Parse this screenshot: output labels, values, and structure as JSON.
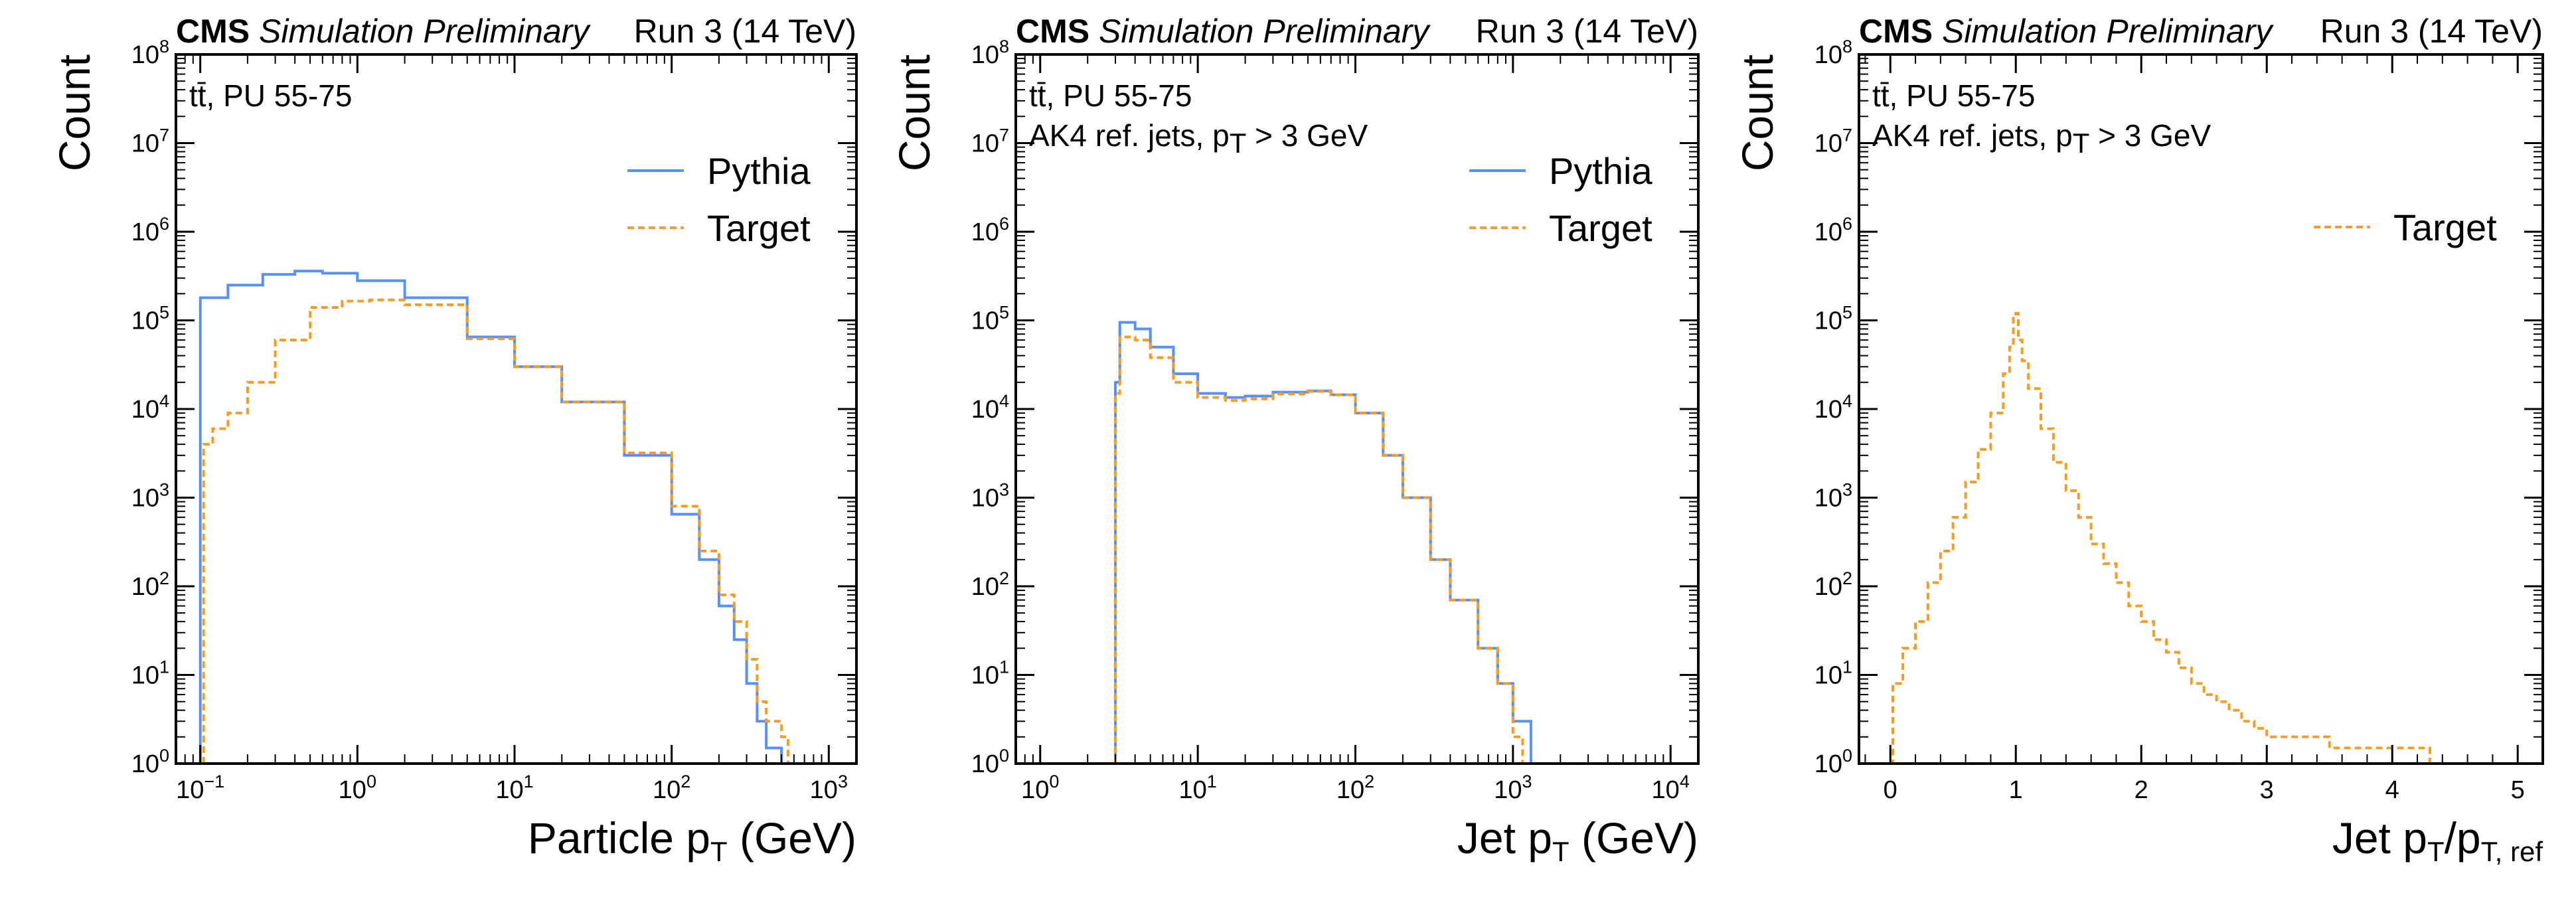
{
  "figure": {
    "header": {
      "experiment": "CMS",
      "status": "Simulation Preliminary",
      "energy": "Run 3 (14 TeV)"
    },
    "legend_labels": {
      "pythia": "Pythia",
      "target": "Target"
    }
  },
  "colors": {
    "pythia": "#5790fc",
    "target": "#f89c20",
    "axis": "#000000"
  },
  "chart_data": [
    {
      "type": "histogram-step",
      "title": "",
      "xscale": "log",
      "yscale": "log",
      "xlim": [
        0.07,
        1500
      ],
      "ylim": [
        1,
        100000000
      ],
      "xlabel": {
        "main": "Particle p",
        "sub": "T",
        "tail": " (GeV)"
      },
      "ylabel": "Count",
      "annotations": [
        "tt̄, PU 55-75"
      ],
      "x_ticks": [
        {
          "b": "10",
          "e": "−1",
          "v": 0.1
        },
        {
          "b": "10",
          "e": "0",
          "v": 1
        },
        {
          "b": "10",
          "e": "1",
          "v": 10
        },
        {
          "b": "10",
          "e": "2",
          "v": 100
        },
        {
          "b": "10",
          "e": "3",
          "v": 1000
        }
      ],
      "y_ticks": [
        {
          "b": "10",
          "e": "0",
          "v": 1
        },
        {
          "b": "10",
          "e": "1",
          "v": 10
        },
        {
          "b": "10",
          "e": "2",
          "v": 100
        },
        {
          "b": "10",
          "e": "3",
          "v": 1000
        },
        {
          "b": "10",
          "e": "4",
          "v": 10000
        },
        {
          "b": "10",
          "e": "5",
          "v": 100000
        },
        {
          "b": "10",
          "e": "6",
          "v": 1000000
        },
        {
          "b": "10",
          "e": "7",
          "v": 10000000
        },
        {
          "b": "10",
          "e": "8",
          "v": 100000000
        }
      ],
      "legend": {
        "entries": [
          "Pythia",
          "Target"
        ],
        "location": "top-right"
      },
      "series": [
        {
          "name": "Pythia",
          "style": "solid",
          "points": [
            [
              0.1,
              180000
            ],
            [
              0.15,
              250000
            ],
            [
              0.25,
              330000
            ],
            [
              0.4,
              360000
            ],
            [
              0.6,
              340000
            ],
            [
              1,
              280000
            ],
            [
              2,
              180000
            ],
            [
              5,
              65000
            ],
            [
              10,
              30000
            ],
            [
              20,
              12000
            ],
            [
              50,
              3000
            ],
            [
              100,
              650
            ],
            [
              150,
              200
            ],
            [
              200,
              60
            ],
            [
              250,
              25
            ],
            [
              300,
              8
            ],
            [
              350,
              3
            ],
            [
              400,
              1.5
            ],
            [
              500,
              1
            ]
          ]
        },
        {
          "name": "Target",
          "style": "dashed",
          "points": [
            [
              0.105,
              4000
            ],
            [
              0.12,
              6000
            ],
            [
              0.15,
              9000
            ],
            [
              0.2,
              20000
            ],
            [
              0.3,
              60000
            ],
            [
              0.5,
              140000
            ],
            [
              0.8,
              165000
            ],
            [
              1.2,
              170000
            ],
            [
              2,
              150000
            ],
            [
              5,
              62000
            ],
            [
              10,
              30000
            ],
            [
              20,
              12000
            ],
            [
              50,
              3200
            ],
            [
              100,
              800
            ],
            [
              150,
              250
            ],
            [
              200,
              80
            ],
            [
              250,
              40
            ],
            [
              300,
              15
            ],
            [
              350,
              5
            ],
            [
              400,
              3
            ],
            [
              500,
              2
            ],
            [
              550,
              1
            ]
          ]
        }
      ]
    },
    {
      "type": "histogram-step",
      "title": "",
      "xscale": "log",
      "yscale": "log",
      "xlim": [
        0.7,
        15000
      ],
      "ylim": [
        1,
        100000000
      ],
      "xlabel": {
        "main": "Jet p",
        "sub": "T",
        "tail": " (GeV)"
      },
      "ylabel": "Count",
      "annotations": [
        "tt̄, PU 55-75",
        "AK4 ref. jets, p"
      ],
      "annotation_sub": {
        "sub": "T",
        "tail": " > 3 GeV"
      },
      "x_ticks": [
        {
          "b": "10",
          "e": "0",
          "v": 1
        },
        {
          "b": "10",
          "e": "1",
          "v": 10
        },
        {
          "b": "10",
          "e": "2",
          "v": 100
        },
        {
          "b": "10",
          "e": "3",
          "v": 1000
        },
        {
          "b": "10",
          "e": "4",
          "v": 10000
        }
      ],
      "y_ticks": [
        {
          "b": "10",
          "e": "0",
          "v": 1
        },
        {
          "b": "10",
          "e": "1",
          "v": 10
        },
        {
          "b": "10",
          "e": "2",
          "v": 100
        },
        {
          "b": "10",
          "e": "3",
          "v": 1000
        },
        {
          "b": "10",
          "e": "4",
          "v": 10000
        },
        {
          "b": "10",
          "e": "5",
          "v": 100000
        },
        {
          "b": "10",
          "e": "6",
          "v": 1000000
        },
        {
          "b": "10",
          "e": "7",
          "v": 10000000
        },
        {
          "b": "10",
          "e": "8",
          "v": 100000000
        }
      ],
      "legend": {
        "entries": [
          "Pythia",
          "Target"
        ],
        "location": "top-right"
      },
      "series": [
        {
          "name": "Pythia",
          "style": "solid",
          "points": [
            [
              3,
              20000
            ],
            [
              3.2,
              95000
            ],
            [
              4,
              80000
            ],
            [
              5,
              50000
            ],
            [
              7,
              25000
            ],
            [
              10,
              15000
            ],
            [
              15,
              13500
            ],
            [
              20,
              14000
            ],
            [
              30,
              15500
            ],
            [
              50,
              16000
            ],
            [
              70,
              14500
            ],
            [
              100,
              9000
            ],
            [
              150,
              3000
            ],
            [
              200,
              1000
            ],
            [
              300,
              200
            ],
            [
              400,
              70
            ],
            [
              600,
              20
            ],
            [
              800,
              8
            ],
            [
              1000,
              3
            ],
            [
              1300,
              1
            ]
          ]
        },
        {
          "name": "Target",
          "style": "dashed",
          "points": [
            [
              3,
              15000
            ],
            [
              3.2,
              65000
            ],
            [
              4,
              60000
            ],
            [
              5,
              38000
            ],
            [
              7,
              20000
            ],
            [
              10,
              13500
            ],
            [
              15,
              12500
            ],
            [
              20,
              13000
            ],
            [
              30,
              14800
            ],
            [
              50,
              15800
            ],
            [
              70,
              14500
            ],
            [
              100,
              9000
            ],
            [
              150,
              3000
            ],
            [
              200,
              1000
            ],
            [
              300,
              200
            ],
            [
              400,
              70
            ],
            [
              600,
              20
            ],
            [
              800,
              8
            ],
            [
              1000,
              2
            ],
            [
              1150,
              1
            ]
          ]
        }
      ]
    },
    {
      "type": "histogram-step",
      "title": "",
      "xscale": "linear",
      "yscale": "log",
      "xlim": [
        -0.25,
        5.2
      ],
      "ylim": [
        1,
        100000000
      ],
      "xlabel": {
        "main": "Jet p",
        "sub": "T",
        "tail": "/p",
        "sub2": "T, ref"
      },
      "ylabel": "Count",
      "annotations": [
        "tt̄, PU 55-75",
        "AK4 ref. jets, p"
      ],
      "annotation_sub": {
        "sub": "T",
        "tail": " > 3 GeV"
      },
      "x_ticks": [
        {
          "b": "0",
          "e": "",
          "v": 0
        },
        {
          "b": "1",
          "e": "",
          "v": 1
        },
        {
          "b": "2",
          "e": "",
          "v": 2
        },
        {
          "b": "3",
          "e": "",
          "v": 3
        },
        {
          "b": "4",
          "e": "",
          "v": 4
        },
        {
          "b": "5",
          "e": "",
          "v": 5
        }
      ],
      "y_ticks": [
        {
          "b": "10",
          "e": "0",
          "v": 1
        },
        {
          "b": "10",
          "e": "1",
          "v": 10
        },
        {
          "b": "10",
          "e": "2",
          "v": 100
        },
        {
          "b": "10",
          "e": "3",
          "v": 1000
        },
        {
          "b": "10",
          "e": "4",
          "v": 10000
        },
        {
          "b": "10",
          "e": "5",
          "v": 100000
        },
        {
          "b": "10",
          "e": "6",
          "v": 1000000
        },
        {
          "b": "10",
          "e": "7",
          "v": 10000000
        },
        {
          "b": "10",
          "e": "8",
          "v": 100000000
        }
      ],
      "legend": {
        "entries": [
          "Target"
        ],
        "location": "top-right"
      },
      "series": [
        {
          "name": "Target",
          "style": "dashed",
          "points": [
            [
              0,
              1
            ],
            [
              0.02,
              8
            ],
            [
              0.1,
              20
            ],
            [
              0.2,
              40
            ],
            [
              0.3,
              110
            ],
            [
              0.4,
              250
            ],
            [
              0.5,
              600
            ],
            [
              0.6,
              1500
            ],
            [
              0.7,
              3500
            ],
            [
              0.8,
              9000
            ],
            [
              0.9,
              25000
            ],
            [
              0.95,
              50000
            ],
            [
              0.98,
              110000
            ],
            [
              1.0,
              120000
            ],
            [
              1.02,
              60000
            ],
            [
              1.05,
              35000
            ],
            [
              1.1,
              17000
            ],
            [
              1.2,
              6000
            ],
            [
              1.3,
              2500
            ],
            [
              1.4,
              1200
            ],
            [
              1.5,
              600
            ],
            [
              1.6,
              300
            ],
            [
              1.7,
              180
            ],
            [
              1.8,
              110
            ],
            [
              1.9,
              60
            ],
            [
              2.0,
              40
            ],
            [
              2.1,
              25
            ],
            [
              2.2,
              18
            ],
            [
              2.3,
              12
            ],
            [
              2.4,
              8
            ],
            [
              2.5,
              6
            ],
            [
              2.6,
              5
            ],
            [
              2.7,
              4
            ],
            [
              2.8,
              3
            ],
            [
              2.9,
              2.5
            ],
            [
              3.0,
              2
            ],
            [
              3.2,
              2
            ],
            [
              3.5,
              1.5
            ],
            [
              4.3,
              1
            ]
          ]
        }
      ]
    }
  ]
}
